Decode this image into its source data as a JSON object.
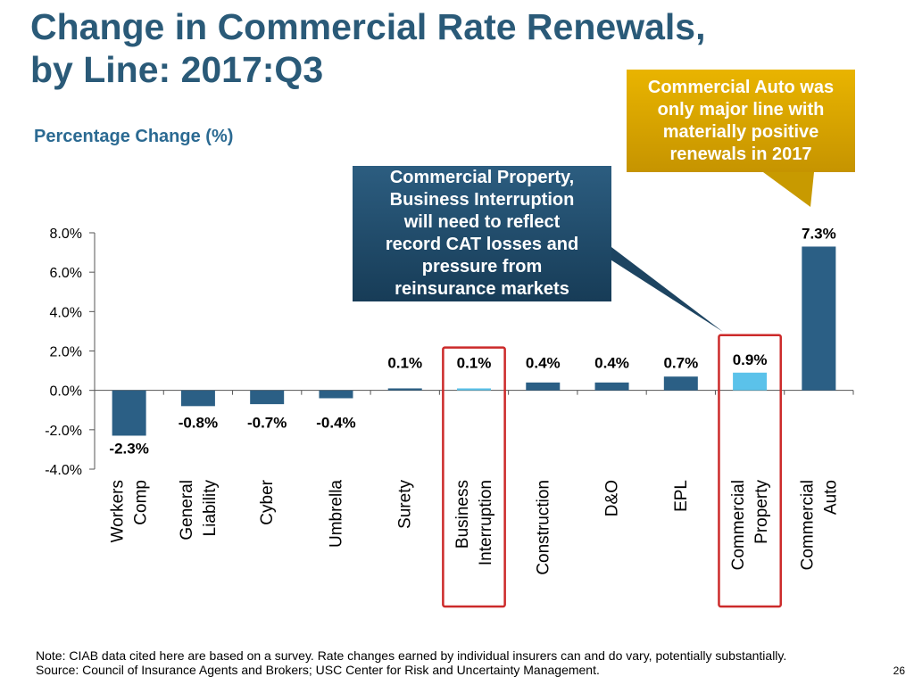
{
  "slide": {
    "title_line1": "Change in Commercial Rate Renewals,",
    "title_line2": "by Line: 2017:Q3",
    "subtitle": "Percentage Change (%)",
    "callout_commercial_auto": [
      "Commercial Auto was",
      "only major line with",
      "materially positive",
      "renewals in 2017"
    ],
    "callout_property": [
      "Commercial Property,",
      "Business Interruption",
      "will need to reflect",
      "record CAT losses and",
      "pressure from",
      "reinsurance markets"
    ],
    "note_line1": "Note: CIAB data cited here are based on a survey. Rate changes earned by individual insurers can and do vary, potentially substantially.",
    "note_line2": "Source: Council of Insurance Agents and Brokers; USC Center for Risk and Uncertainty Management.",
    "page_number": "26"
  },
  "colors": {
    "title": "#2a5a78",
    "bar_default": "#2b5f85",
    "bar_highlight": "#5bc2ea",
    "highlight_box": "#cc2a2a",
    "callout_gold": "#d9a600",
    "callout_blue": "#204d6e"
  },
  "chart_data": {
    "type": "bar",
    "title": "Change in Commercial Rate Renewals, by Line: 2017:Q3",
    "ylabel": "Percentage Change (%)",
    "xlabel": "",
    "ylim": [
      -4.0,
      8.0
    ],
    "yticks": [
      -4.0,
      -2.0,
      0.0,
      2.0,
      4.0,
      6.0,
      8.0
    ],
    "ytick_labels": [
      "-4.0%",
      "-2.0%",
      "0.0%",
      "2.0%",
      "4.0%",
      "6.0%",
      "8.0%"
    ],
    "categories": [
      [
        "Workers",
        "Comp"
      ],
      [
        "General",
        "Liability"
      ],
      [
        "Cyber"
      ],
      [
        "Umbrella"
      ],
      [
        "Surety"
      ],
      [
        "Business",
        "Interruption"
      ],
      [
        "Construction"
      ],
      [
        "D&O"
      ],
      [
        "EPL"
      ],
      [
        "Commercial",
        "Property"
      ],
      [
        "Commercial",
        "Auto"
      ]
    ],
    "values": [
      -2.3,
      -0.8,
      -0.7,
      -0.4,
      0.1,
      0.1,
      0.4,
      0.4,
      0.7,
      0.9,
      7.3
    ],
    "data_labels": [
      "-2.3%",
      "-0.8%",
      "-0.7%",
      "-0.4%",
      "0.1%",
      "0.1%",
      "0.4%",
      "0.4%",
      "0.7%",
      "0.9%",
      "7.3%"
    ],
    "highlighted": [
      false,
      false,
      false,
      false,
      false,
      true,
      false,
      false,
      false,
      true,
      false
    ],
    "boxed": [
      false,
      false,
      false,
      false,
      false,
      true,
      false,
      false,
      false,
      true,
      false
    ],
    "grid": false,
    "legend": "none"
  }
}
